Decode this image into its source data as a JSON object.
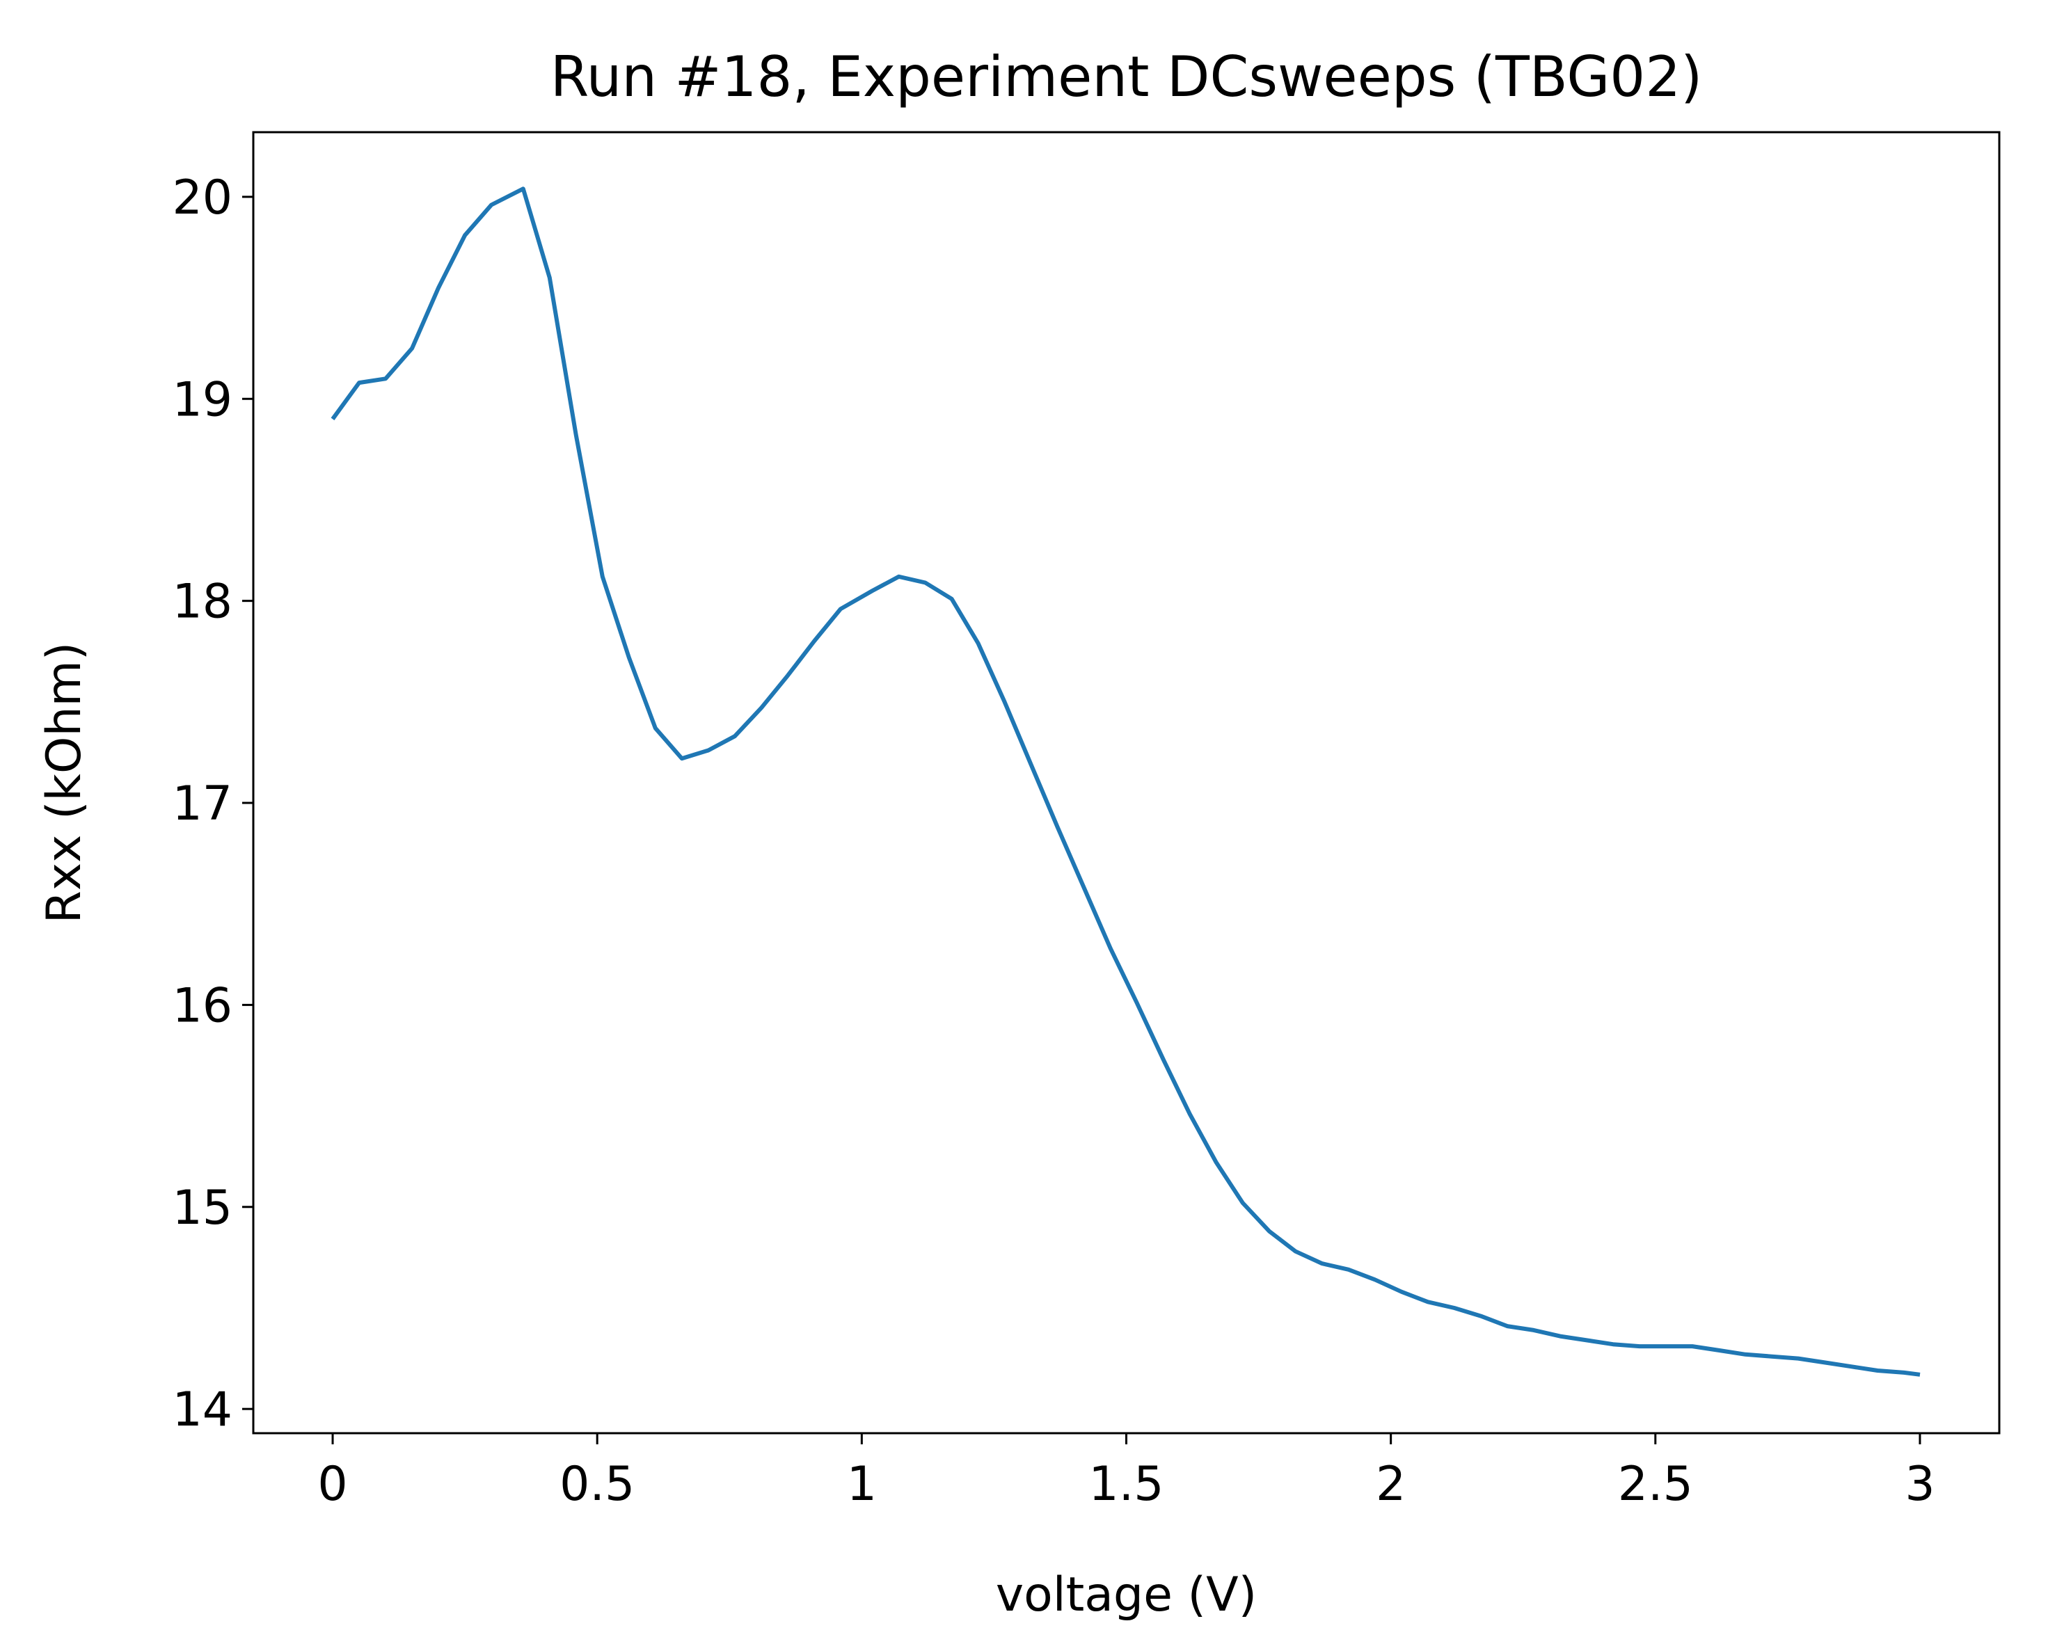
{
  "chart_data": {
    "type": "line",
    "title": "Run #18, Experiment DCsweeps (TBG02)",
    "xlabel": "voltage (V)",
    "ylabel": "Rxx (kOhm)",
    "xlim": [
      -0.15,
      3.15
    ],
    "ylim": [
      13.88,
      20.32
    ],
    "x_ticks": [
      0,
      0.5,
      1,
      1.5,
      2,
      2.5,
      3
    ],
    "x_tick_labels": [
      "0",
      "0.5",
      "1",
      "1.5",
      "2",
      "2.5",
      "3"
    ],
    "y_ticks": [
      14,
      15,
      16,
      17,
      18,
      19,
      20
    ],
    "y_tick_labels": [
      "14",
      "15",
      "16",
      "17",
      "18",
      "19",
      "20"
    ],
    "grid": false,
    "legend": "none",
    "series": [
      {
        "color": "#1f77b4",
        "x": [
          0.0,
          0.05,
          0.1,
          0.15,
          0.2,
          0.25,
          0.3,
          0.36,
          0.41,
          0.46,
          0.51,
          0.56,
          0.61,
          0.66,
          0.71,
          0.76,
          0.81,
          0.86,
          0.91,
          0.96,
          1.02,
          1.07,
          1.12,
          1.17,
          1.22,
          1.27,
          1.32,
          1.37,
          1.42,
          1.47,
          1.52,
          1.57,
          1.62,
          1.67,
          1.72,
          1.77,
          1.82,
          1.87,
          1.92,
          1.97,
          2.02,
          2.07,
          2.12,
          2.17,
          2.22,
          2.27,
          2.32,
          2.37,
          2.42,
          2.47,
          2.52,
          2.57,
          2.62,
          2.67,
          2.72,
          2.77,
          2.82,
          2.87,
          2.92,
          2.97,
          3.0
        ],
        "y": [
          18.9,
          19.08,
          19.1,
          19.25,
          19.55,
          19.81,
          19.96,
          20.04,
          19.6,
          18.82,
          18.12,
          17.72,
          17.37,
          17.22,
          17.26,
          17.33,
          17.47,
          17.63,
          17.8,
          17.96,
          18.05,
          18.12,
          18.09,
          18.01,
          17.79,
          17.5,
          17.19,
          16.88,
          16.58,
          16.28,
          16.01,
          15.73,
          15.46,
          15.22,
          15.02,
          14.88,
          14.78,
          14.72,
          14.69,
          14.64,
          14.58,
          14.53,
          14.5,
          14.46,
          14.41,
          14.39,
          14.36,
          14.34,
          14.32,
          14.31,
          14.31,
          14.31,
          14.29,
          14.27,
          14.26,
          14.25,
          14.23,
          14.21,
          14.19,
          14.18,
          14.17
        ]
      }
    ]
  }
}
